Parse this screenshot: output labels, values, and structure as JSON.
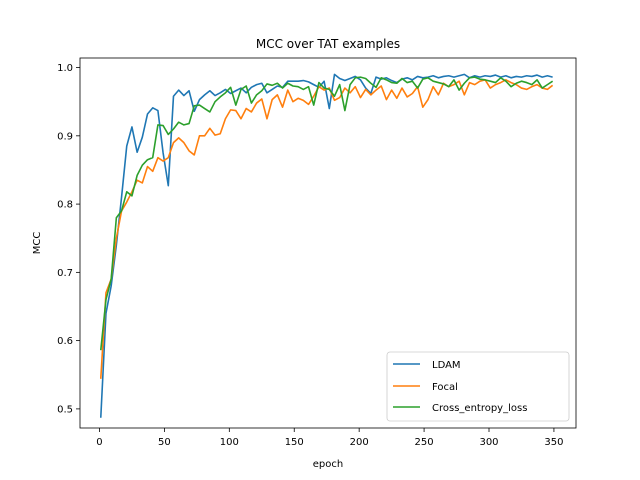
{
  "chart_data": {
    "type": "line",
    "title": "MCC over TAT examples",
    "xlabel": "epoch",
    "ylabel": "MCC",
    "xlim": [
      -15,
      367
    ],
    "ylim": [
      0.472,
      1.014
    ],
    "xticks": [
      0,
      50,
      100,
      150,
      200,
      250,
      300,
      350
    ],
    "yticks": [
      0.5,
      0.6,
      0.7,
      0.8,
      0.9,
      1.0
    ],
    "ytick_labels": [
      "0.5",
      "0.6",
      "0.7",
      "0.8",
      "0.9",
      "1.0"
    ],
    "grid": false,
    "legend_position": "lower-right",
    "x": [
      1,
      5,
      9,
      13,
      17,
      21,
      25,
      29,
      33,
      37,
      41,
      45,
      49,
      53,
      57,
      61,
      65,
      69,
      73,
      77,
      81,
      85,
      89,
      93,
      97,
      101,
      105,
      109,
      113,
      117,
      121,
      125,
      129,
      133,
      137,
      141,
      145,
      149,
      153,
      157,
      161,
      165,
      169,
      173,
      177,
      181,
      185,
      189,
      193,
      197,
      201,
      205,
      209,
      213,
      217,
      221,
      225,
      229,
      233,
      237,
      241,
      245,
      249,
      253,
      257,
      261,
      265,
      269,
      273,
      277,
      281,
      285,
      289,
      293,
      297,
      301,
      305,
      309,
      313,
      317,
      321,
      325,
      329,
      333,
      337,
      341,
      345,
      349
    ],
    "series": [
      {
        "name": "LDAM",
        "color": "#1f77b4",
        "values": [
          0.487,
          0.64,
          0.68,
          0.74,
          0.81,
          0.885,
          0.913,
          0.876,
          0.898,
          0.932,
          0.941,
          0.937,
          0.875,
          0.827,
          0.958,
          0.967,
          0.959,
          0.966,
          0.936,
          0.953,
          0.96,
          0.966,
          0.959,
          0.963,
          0.968,
          0.962,
          0.966,
          0.97,
          0.963,
          0.971,
          0.975,
          0.977,
          0.963,
          0.968,
          0.973,
          0.971,
          0.98,
          0.98,
          0.98,
          0.981,
          0.979,
          0.975,
          0.971,
          0.98,
          0.94,
          0.99,
          0.984,
          0.981,
          0.984,
          0.987,
          0.982,
          0.97,
          0.962,
          0.986,
          0.983,
          0.985,
          0.981,
          0.978,
          0.983,
          0.985,
          0.982,
          0.987,
          0.985,
          0.986,
          0.988,
          0.985,
          0.987,
          0.988,
          0.986,
          0.988,
          0.99,
          0.985,
          0.988,
          0.986,
          0.988,
          0.987,
          0.989,
          0.986,
          0.988,
          0.985,
          0.987,
          0.986,
          0.988,
          0.987,
          0.989,
          0.986,
          0.988,
          0.986
        ]
      },
      {
        "name": "Focal",
        "color": "#ff7f0e",
        "values": [
          0.544,
          0.67,
          0.69,
          0.75,
          0.79,
          0.803,
          0.818,
          0.835,
          0.831,
          0.855,
          0.848,
          0.868,
          0.863,
          0.868,
          0.89,
          0.897,
          0.89,
          0.878,
          0.872,
          0.9,
          0.9,
          0.911,
          0.901,
          0.903,
          0.925,
          0.938,
          0.937,
          0.925,
          0.94,
          0.935,
          0.948,
          0.954,
          0.925,
          0.953,
          0.96,
          0.942,
          0.967,
          0.95,
          0.955,
          0.952,
          0.946,
          0.958,
          0.972,
          0.967,
          0.97,
          0.952,
          0.956,
          0.97,
          0.963,
          0.972,
          0.956,
          0.968,
          0.96,
          0.967,
          0.973,
          0.953,
          0.967,
          0.955,
          0.97,
          0.957,
          0.962,
          0.972,
          0.942,
          0.953,
          0.972,
          0.96,
          0.977,
          0.972,
          0.975,
          0.98,
          0.96,
          0.978,
          0.975,
          0.98,
          0.982,
          0.97,
          0.975,
          0.978,
          0.982,
          0.978,
          0.975,
          0.97,
          0.968,
          0.972,
          0.975,
          0.97,
          0.968,
          0.974
        ]
      },
      {
        "name": "Cross_entropy_loss",
        "color": "#2ca02c",
        "values": [
          0.586,
          0.66,
          0.69,
          0.78,
          0.79,
          0.818,
          0.812,
          0.842,
          0.857,
          0.865,
          0.868,
          0.916,
          0.915,
          0.902,
          0.91,
          0.92,
          0.916,
          0.918,
          0.944,
          0.945,
          0.94,
          0.935,
          0.95,
          0.957,
          0.963,
          0.971,
          0.945,
          0.968,
          0.973,
          0.948,
          0.96,
          0.966,
          0.976,
          0.974,
          0.977,
          0.97,
          0.977,
          0.973,
          0.972,
          0.968,
          0.972,
          0.945,
          0.978,
          0.97,
          0.968,
          0.958,
          0.975,
          0.937,
          0.975,
          0.985,
          0.986,
          0.984,
          0.977,
          0.971,
          0.985,
          0.982,
          0.978,
          0.977,
          0.984,
          0.978,
          0.98,
          0.97,
          0.983,
          0.985,
          0.98,
          0.978,
          0.976,
          0.972,
          0.982,
          0.967,
          0.977,
          0.985,
          0.986,
          0.983,
          0.982,
          0.98,
          0.978,
          0.985,
          0.98,
          0.972,
          0.977,
          0.98,
          0.978,
          0.975,
          0.982,
          0.97,
          0.975,
          0.98
        ]
      }
    ]
  }
}
